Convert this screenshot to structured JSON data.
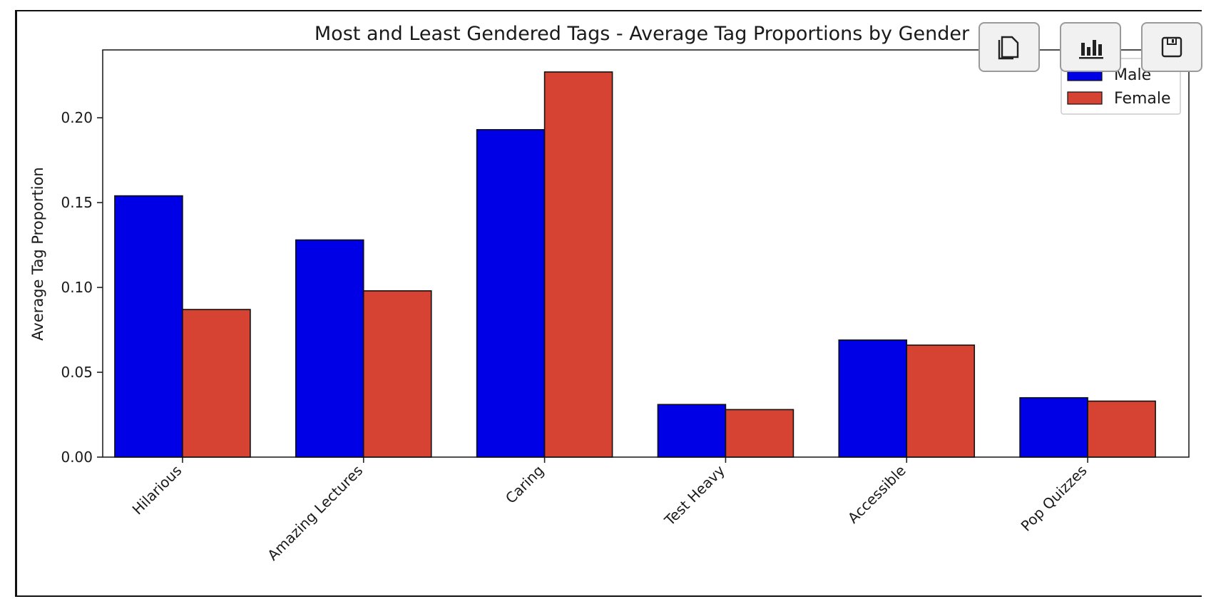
{
  "chart_data": {
    "type": "bar",
    "title": "Most and Least Gendered Tags - Average Tag Proportions by Gender",
    "xlabel": "",
    "ylabel": "Average Tag Proportion",
    "categories": [
      "Hilarious",
      "Amazing Lectures",
      "Caring",
      "Test Heavy",
      "Accessible",
      "Pop Quizzes"
    ],
    "series": [
      {
        "name": "Male",
        "color": "#0000e6",
        "values": [
          0.154,
          0.128,
          0.193,
          0.031,
          0.069,
          0.035
        ]
      },
      {
        "name": "Female",
        "color": "#d64332",
        "values": [
          0.087,
          0.098,
          0.227,
          0.028,
          0.066,
          0.033
        ]
      }
    ],
    "ylim": [
      0,
      0.24
    ],
    "yticks": [
      "0.00",
      "0.05",
      "0.10",
      "0.15",
      "0.20"
    ],
    "grid": false,
    "legend_position": "upper right"
  },
  "toolbar": {
    "buttons": [
      {
        "icon": "copy-icon"
      },
      {
        "icon": "bar-chart-icon"
      },
      {
        "icon": "save-icon"
      }
    ]
  }
}
